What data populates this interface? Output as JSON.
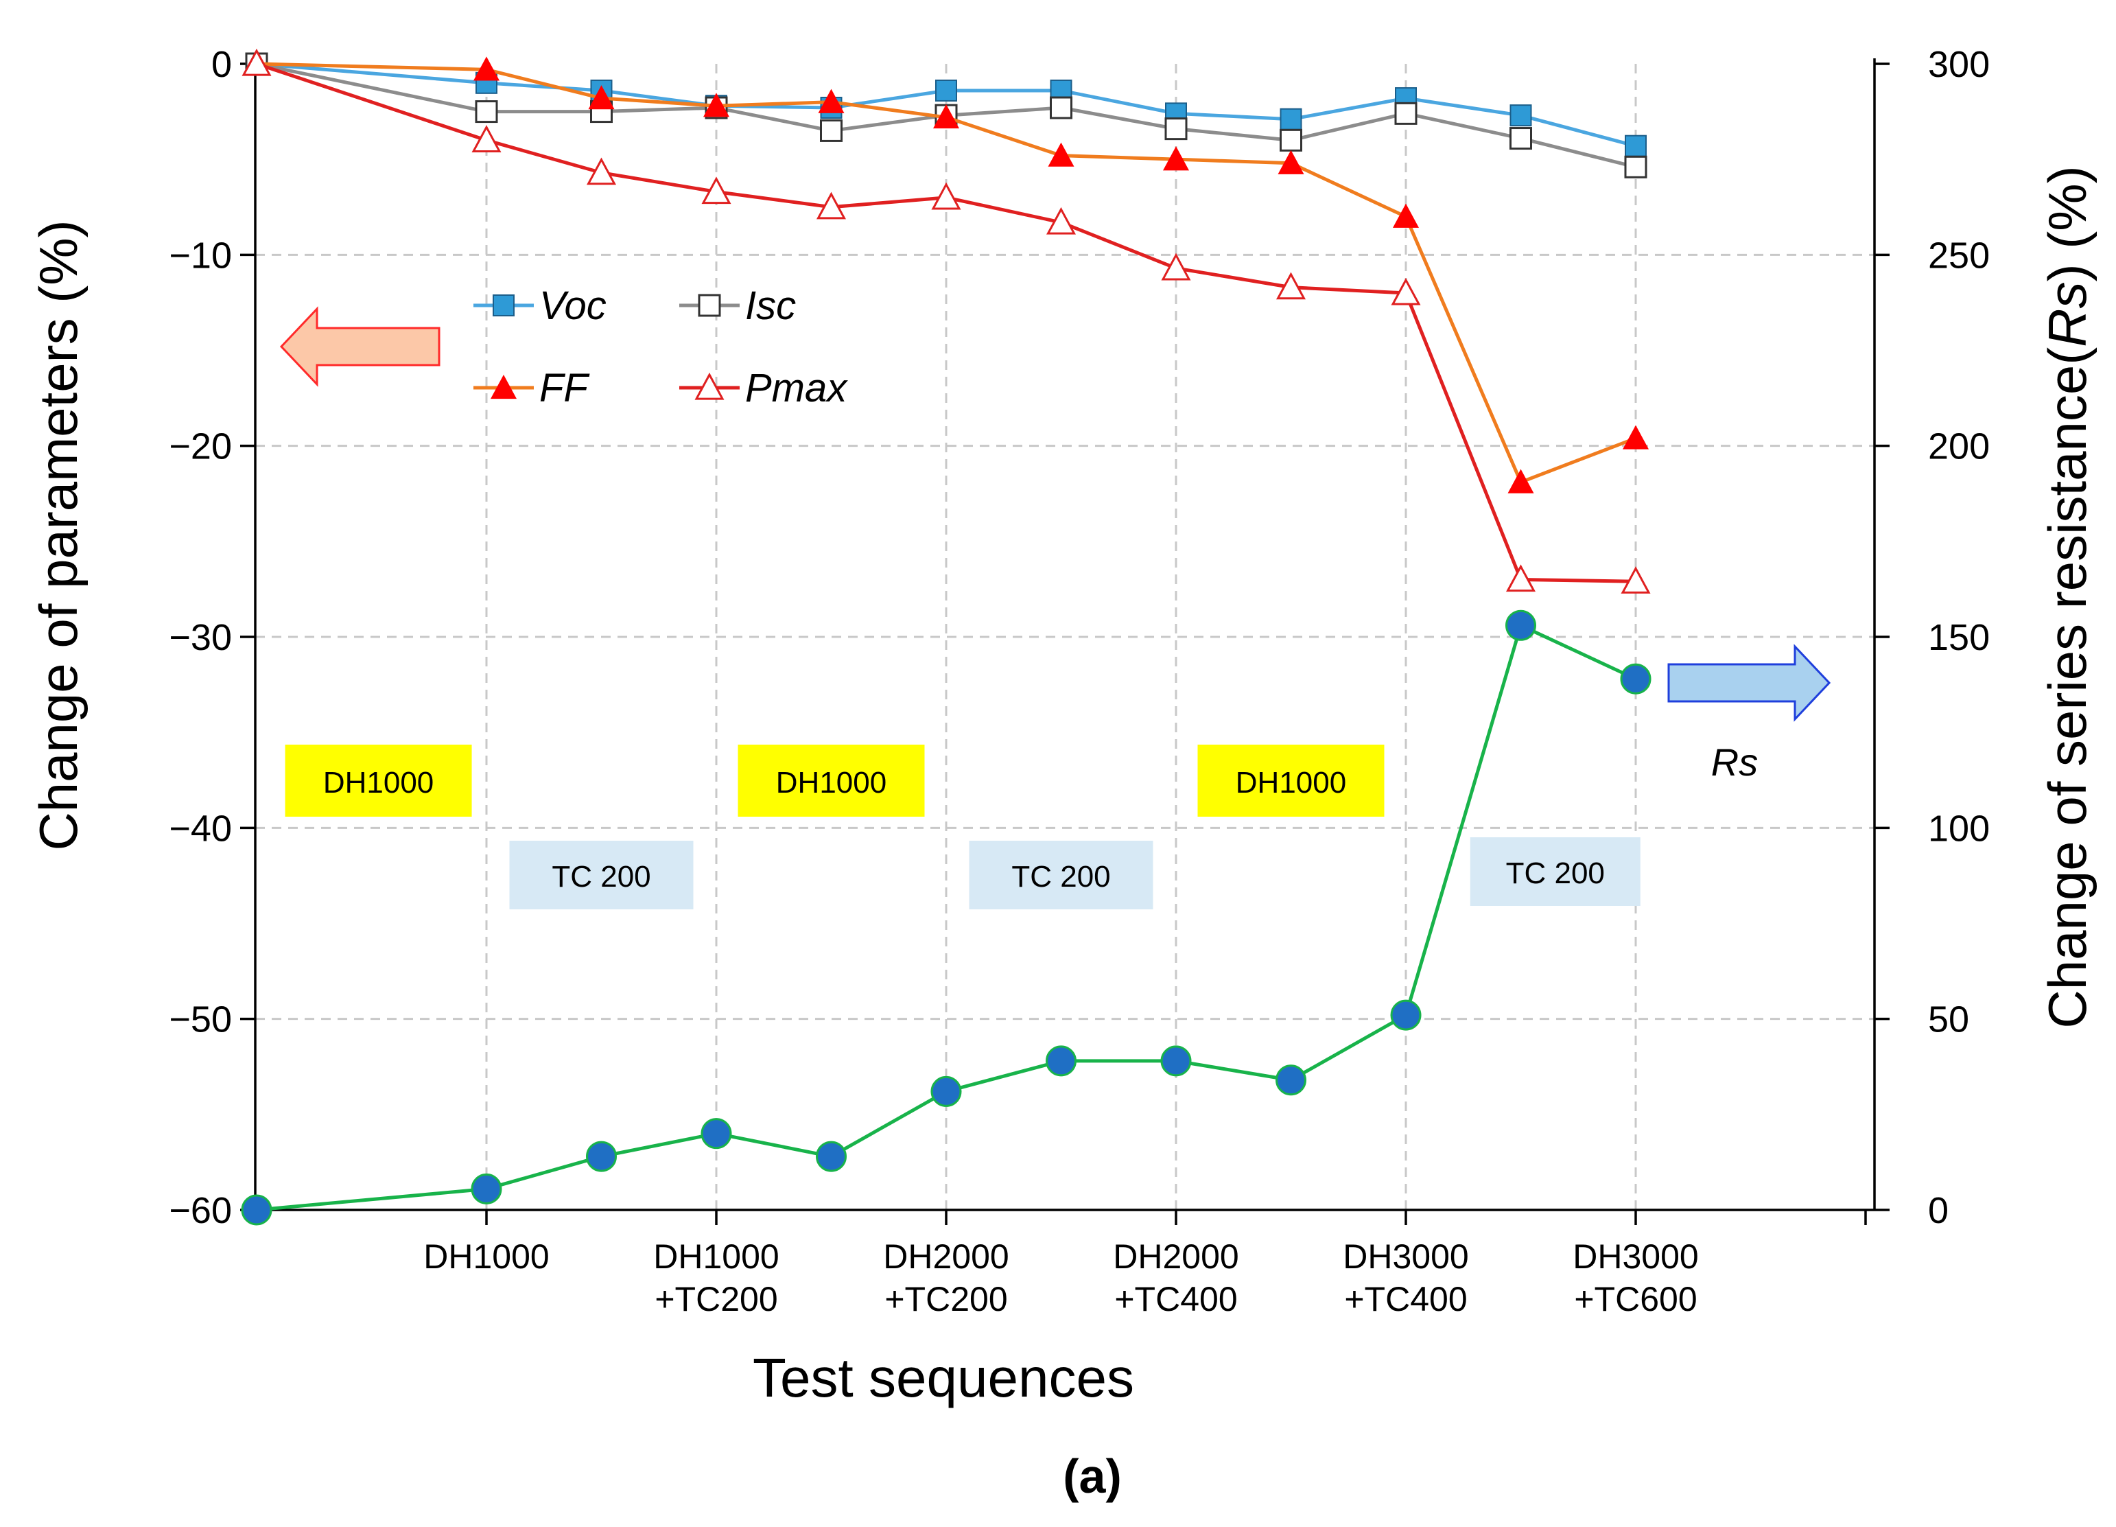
{
  "chart_data": {
    "type": "line",
    "panel_label": "(a)",
    "xlabel": "Test sequences",
    "ylabel_left": "Change of parameters (%)",
    "ylabel_right_parts": [
      "Change of series resistance(",
      "Rs",
      ") (%)"
    ],
    "ylim_left": [
      -60,
      0
    ],
    "ylim_right": [
      0,
      300
    ],
    "yticks_left": [
      "0",
      "−10",
      "−20",
      "−30",
      "−40",
      "−50",
      "−60"
    ],
    "yticks_right": [
      "300",
      "250",
      "200",
      "150",
      "100",
      "50",
      "0"
    ],
    "x_tick_labels": [
      [
        "DH1000"
      ],
      [
        "DH1000",
        "+TC200"
      ],
      [
        "DH2000",
        "+TC200"
      ],
      [
        "DH2000",
        "+TC400"
      ],
      [
        "DH3000",
        "+TC400"
      ],
      [
        "DH3000",
        "+TC600"
      ]
    ],
    "grid": true,
    "series": [
      {
        "name": "Voc",
        "axis": "left",
        "color": "#4aa6e0",
        "marker": "square-filled",
        "marker_color": "#2e9ad6",
        "x": [
          0,
          1,
          1.5,
          2,
          2.5,
          3,
          3.5,
          4,
          4.5,
          5,
          5.5,
          6
        ],
        "values": [
          0,
          -1.0,
          -1.4,
          -2.2,
          -2.3,
          -1.4,
          -1.4,
          -2.6,
          -2.9,
          -1.8,
          -2.7,
          -4.3
        ]
      },
      {
        "name": "Isc",
        "axis": "left",
        "color": "#8c8c8c",
        "marker": "square-open",
        "marker_color": "#333333",
        "x": [
          0,
          1,
          1.5,
          2,
          2.5,
          3,
          3.5,
          4,
          4.5,
          5,
          5.5,
          6
        ],
        "values": [
          0,
          -2.5,
          -2.5,
          -2.3,
          -3.5,
          -2.7,
          -2.3,
          -3.4,
          -4.0,
          -2.6,
          -3.9,
          -5.4
        ]
      },
      {
        "name": "FF",
        "axis": "left",
        "color": "#f07c1e",
        "marker": "triangle-filled",
        "marker_color": "#ff0000",
        "x": [
          0,
          1,
          1.5,
          2,
          2.5,
          3,
          3.5,
          4,
          4.5,
          5,
          5.5,
          6
        ],
        "values": [
          0,
          -0.3,
          -1.8,
          -2.2,
          -2.0,
          -2.8,
          -4.8,
          -5.0,
          -5.2,
          -8.0,
          -21.9,
          -19.6
        ]
      },
      {
        "name": "Pmax",
        "axis": "left",
        "color": "#e02020",
        "marker": "triangle-open",
        "marker_color": "#e02020",
        "x": [
          0,
          1,
          1.5,
          2,
          2.5,
          3,
          3.5,
          4,
          4.5,
          5,
          5.5,
          6
        ],
        "values": [
          0,
          -4.0,
          -5.7,
          -6.7,
          -7.5,
          -7.0,
          -8.3,
          -10.7,
          -11.7,
          -12.0,
          -27.0,
          -27.1
        ]
      },
      {
        "name": "Rs",
        "axis": "right",
        "color": "#18b34a",
        "marker": "circle-filled",
        "marker_color": "#1f6fc4",
        "x": [
          0,
          1,
          1.5,
          2,
          2.5,
          3,
          3.5,
          4,
          4.5,
          5,
          5.5,
          6
        ],
        "values": [
          0,
          5.5,
          14,
          20,
          14,
          31,
          39,
          39,
          34,
          51,
          153,
          139
        ]
      }
    ],
    "legend": {
      "placement": "upper-left",
      "entries": [
        "Voc",
        "Isc",
        "FF",
        "Pmax"
      ]
    },
    "annotations": {
      "left_arrow_meaning": "left axis",
      "rs_label": "Rs",
      "dh_boxes": [
        {
          "text": "DH1000",
          "x_center": 0.53
        },
        {
          "text": "DH1000",
          "x_center": 2.5
        },
        {
          "text": "DH1000",
          "x_center": 4.5
        }
      ],
      "tc_boxes": [
        {
          "text": "TC 200",
          "x_center": 1.5
        },
        {
          "text": "TC 200",
          "x_center": 3.5
        },
        {
          "text": "TC 200",
          "x_center": 5.65
        }
      ],
      "dh_color": "#ffff00",
      "tc_color": "#d7e9f5"
    }
  }
}
